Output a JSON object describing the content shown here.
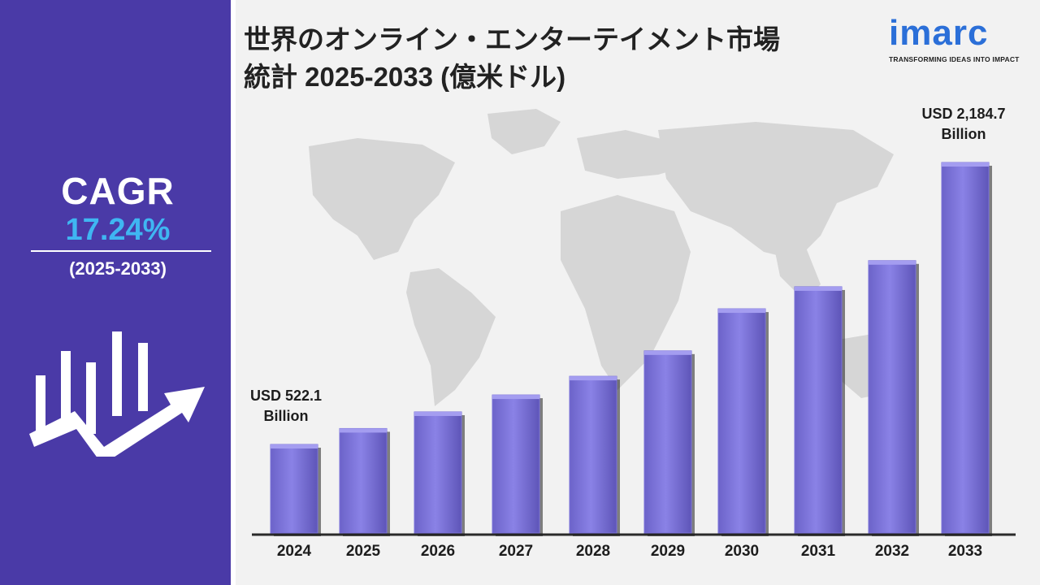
{
  "title_line1": "世界のオンライン・エンターテイメント市場",
  "title_line2": "統計 2025-2033 (億米ドル)",
  "logo": {
    "word": "imarc",
    "tagline": "TRANSFORMING IDEAS INTO IMPACT"
  },
  "cagr": {
    "label": "CAGR",
    "value": "17.24%",
    "period": "(2025-2033)"
  },
  "colors": {
    "sidebar": "#4a3aa7",
    "bar": "#7b72d9",
    "cagr_value": "#3fb6f2",
    "logo": "#2b6fd8",
    "map": "#d6d6d6"
  },
  "icons": {
    "growth": "bar-chart-arrow-icon",
    "map": "world-map-icon"
  },
  "chart_data": {
    "type": "bar",
    "categories": [
      "2024",
      "2025",
      "2026",
      "2027",
      "2028",
      "2029",
      "2030",
      "2031",
      "2032",
      "2033"
    ],
    "values": [
      522.1,
      616,
      714,
      814,
      924,
      1074,
      1322,
      1452,
      1606,
      2184.7
    ],
    "annotations": [
      {
        "category": "2024",
        "line1": "USD 522.1",
        "line2": "Billion"
      },
      {
        "category": "2033",
        "line1": "USD 2,184.7",
        "line2": "Billion"
      }
    ],
    "ylim": [
      0,
      2184.7
    ],
    "grid": false
  }
}
